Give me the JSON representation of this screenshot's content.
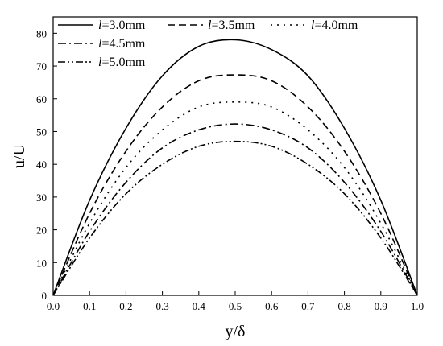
{
  "chart_data": {
    "type": "line",
    "title": "",
    "xlabel": "y/δ",
    "ylabel": "u/U",
    "xlim": [
      0.0,
      1.0
    ],
    "ylim": [
      0,
      85
    ],
    "xticks": [
      "0.0",
      "0.1",
      "0.2",
      "0.3",
      "0.4",
      "0.5",
      "0.6",
      "0.7",
      "0.8",
      "0.9",
      "1.0"
    ],
    "yticks": [
      "0",
      "10",
      "20",
      "30",
      "40",
      "50",
      "60",
      "70",
      "80"
    ],
    "grid": false,
    "legend_position": "top-left",
    "x": [
      0.0,
      0.1,
      0.2,
      0.3,
      0.4,
      0.5,
      0.6,
      0.7,
      0.8,
      0.9,
      1.0
    ],
    "series": [
      {
        "name": "l=3.0mm",
        "style": "solid",
        "values": [
          0,
          29,
          51,
          67,
          76,
          78,
          75,
          67,
          51,
          29,
          0
        ]
      },
      {
        "name": "l=3.5mm",
        "style": "dashed",
        "values": [
          0,
          25,
          44,
          57.5,
          65.5,
          67.3,
          65.5,
          57.5,
          44,
          25,
          0
        ]
      },
      {
        "name": "l=4.0mm",
        "style": "dotted",
        "values": [
          0,
          22,
          39,
          50.5,
          57.5,
          59,
          57.5,
          50.5,
          39,
          22,
          0
        ]
      },
      {
        "name": "l=4.5mm",
        "style": "dash-dot",
        "values": [
          0,
          19.5,
          34.5,
          45,
          50.5,
          52.3,
          50.5,
          45,
          34.5,
          19.5,
          0
        ]
      },
      {
        "name": "l=5.0mm",
        "style": "dash-dot-dot",
        "values": [
          0,
          17.5,
          31,
          40,
          45.5,
          47,
          45.5,
          40,
          31,
          17.5,
          0
        ]
      }
    ],
    "legend": [
      {
        "prefix": "l",
        "rest": "=3.0mm"
      },
      {
        "prefix": "l",
        "rest": "=3.5mm"
      },
      {
        "prefix": "l",
        "rest": "=4.0mm"
      },
      {
        "prefix": "l",
        "rest": "=4.5mm"
      },
      {
        "prefix": "l",
        "rest": "=5.0mm"
      }
    ]
  }
}
